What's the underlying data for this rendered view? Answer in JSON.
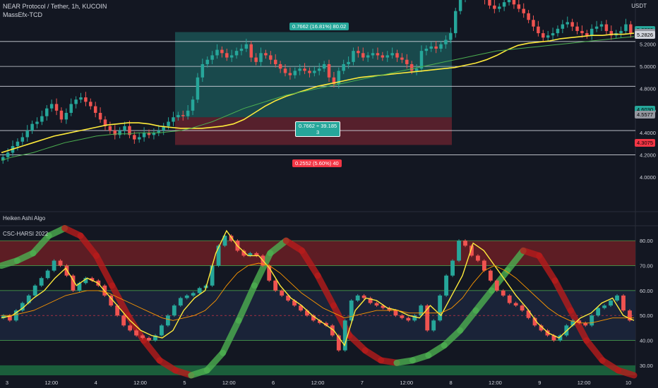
{
  "header": {
    "symbol_line": "NEAR Protocol / Tether, 1h, KUCOIN",
    "indicator_line": "MassEfx-TCD",
    "currency": "USDT"
  },
  "panes": {
    "heiken_label": "Heiken Ashi Algo",
    "harsi_label": "CSC-HARSI 2022"
  },
  "trade_box": {
    "target_label": "0.7662 (16.81%) 80.02",
    "mid_label_line1": "0.7662 ÷ 39.185",
    "mid_label_line2": "3",
    "stop_label": "0.2552 (5.60%) 40"
  },
  "price_badges": [
    {
      "text": "5.3239",
      "color": "#26a69a",
      "price": 5.3239
    },
    {
      "text": "5.3027",
      "color": "#9598a1",
      "price": 5.3027
    },
    {
      "text": "5.2826",
      "color": "#d1d4dc",
      "price": 5.2826
    },
    {
      "text": "4.6030",
      "color": "#26a69a",
      "price": 4.603
    },
    {
      "text": "4.5577",
      "color": "#9598a1",
      "price": 4.5577
    },
    {
      "text": "4.3075",
      "color": "#f23645",
      "price": 4.3075
    }
  ],
  "chart_data": [
    {
      "type": "candlestick",
      "title": "NEAR Protocol / Tether, 1h, KUCOIN",
      "ylim": [
        3.7,
        5.6
      ],
      "y_ticks": [
        "4.0000",
        "4.2000",
        "4.4000",
        "4.6000",
        "4.8000",
        "5.0000",
        "5.2000"
      ],
      "y_tick_values": [
        4.0,
        4.2,
        4.4,
        4.6,
        4.8,
        5.0,
        5.2
      ],
      "x_ticks": [
        "3",
        "12:00",
        "4",
        "12:00",
        "5",
        "12:00",
        "6",
        "12:00",
        "7",
        "12:00",
        "8",
        "12:00",
        "9",
        "12:00",
        "10"
      ],
      "horizontal_levels": [
        5.225,
        5.0,
        4.82,
        4.42,
        4.2
      ],
      "close_path": [
        4.18,
        4.22,
        4.28,
        4.32,
        4.36,
        4.42,
        4.48,
        4.5,
        4.55,
        4.62,
        4.66,
        4.6,
        4.52,
        4.58,
        4.66,
        4.7,
        4.72,
        4.68,
        4.64,
        4.58,
        4.52,
        4.46,
        4.42,
        4.38,
        4.42,
        4.46,
        4.38,
        4.34,
        4.36,
        4.4,
        4.38,
        4.4,
        4.42,
        4.46,
        4.5,
        4.54,
        4.56,
        4.55,
        4.6,
        4.7,
        4.9,
        5.02,
        5.06,
        5.1,
        5.15,
        5.12,
        5.08,
        5.1,
        5.14,
        5.16,
        5.2,
        5.08,
        5.04,
        5.12,
        5.1,
        5.06,
        5.02,
        4.98,
        4.94,
        4.92,
        4.96,
        4.98,
        4.96,
        4.94,
        4.96,
        4.98,
        5.02,
        4.9,
        4.84,
        4.96,
        5.02,
        5.04,
        5.14,
        5.12,
        5.08,
        5.1,
        5.12,
        5.1,
        5.08,
        5.1,
        5.12,
        5.08,
        5.06,
        5.02,
        4.96,
        4.98,
        5.14,
        5.16,
        5.18,
        5.16,
        5.2,
        5.24,
        5.3,
        5.5,
        5.62,
        5.7,
        5.75,
        5.72,
        5.66,
        5.6,
        5.55,
        5.52,
        5.54,
        5.58,
        5.6,
        5.56,
        5.52,
        5.48,
        5.42,
        5.36,
        5.3,
        5.26,
        5.28,
        5.3,
        5.34,
        5.38,
        5.4,
        5.36,
        5.32,
        5.3,
        5.28,
        5.34,
        5.36,
        5.38,
        5.32,
        5.28,
        5.3,
        5.32,
        5.38,
        5.3
      ],
      "series": [
        {
          "name": "",
          "type": "line",
          "color": "#ffeb3b",
          "values": [
            4.22,
            4.25,
            4.28,
            4.31,
            4.34,
            4.37,
            4.39,
            4.41,
            4.43,
            4.45,
            4.47,
            4.48,
            4.49,
            4.49,
            4.48,
            4.46,
            4.45,
            4.44,
            4.44,
            4.44,
            4.45,
            4.46,
            4.48,
            4.52,
            4.58,
            4.64,
            4.69,
            4.73,
            4.76,
            4.79,
            4.82,
            4.84,
            4.86,
            4.88,
            4.9,
            4.91,
            4.92,
            4.93,
            4.94,
            4.95,
            4.96,
            4.97,
            4.98,
            4.99,
            5.01,
            5.03,
            5.06,
            5.1,
            5.15,
            5.19,
            5.21,
            5.22,
            5.23,
            5.25,
            5.26,
            5.27,
            5.28,
            5.28,
            5.29,
            5.29,
            5.3
          ]
        },
        {
          "name": "",
          "type": "line",
          "color": "#4caf50",
          "values": [
            4.15,
            4.18,
            4.2,
            4.22,
            4.25,
            4.28,
            4.31,
            4.33,
            4.35,
            4.37,
            4.38,
            4.39,
            4.39,
            4.4,
            4.4,
            4.4,
            4.41,
            4.42,
            4.44,
            4.47,
            4.5,
            4.54,
            4.58,
            4.62,
            4.65,
            4.68,
            4.71,
            4.74,
            4.76,
            4.78,
            4.8,
            4.82,
            4.84,
            4.86,
            4.88,
            4.9,
            4.92,
            4.94,
            4.96,
            4.98,
            5.0,
            5.02,
            5.04,
            5.06,
            5.08,
            5.1,
            5.12,
            5.14,
            5.15,
            5.16,
            5.17,
            5.18,
            5.19,
            5.2,
            5.21,
            5.22,
            5.23,
            5.24,
            5.25,
            5.26,
            5.27
          ]
        }
      ]
    },
    {
      "type": "candlestick",
      "title": "CSC-HARSI 2022",
      "ylim": [
        26,
        86
      ],
      "y_ticks": [
        "30.00",
        "40.00",
        "50.00",
        "60.00",
        "70.00",
        "80.00"
      ],
      "y_tick_values": [
        30,
        40,
        50,
        60,
        70,
        80
      ],
      "bands": [
        {
          "from": 70,
          "to": 80,
          "color": "#5d1d24"
        },
        {
          "from": 40,
          "to": 60,
          "color": "#1a2338"
        },
        {
          "from": 26,
          "to": 30,
          "color": "#1b5e3b"
        }
      ],
      "levels": [
        40,
        50,
        60,
        70,
        80
      ],
      "close_path": [
        50,
        48,
        52,
        55,
        58,
        62,
        65,
        68,
        72,
        70,
        66,
        60,
        63,
        65,
        64,
        62,
        58,
        54,
        50,
        46,
        44,
        42,
        41,
        40,
        42,
        46,
        50,
        54,
        57,
        58,
        59,
        61,
        62,
        70,
        78,
        82,
        80,
        76,
        74,
        75,
        74,
        70,
        64,
        60,
        58,
        56,
        54,
        52,
        50,
        48,
        47,
        46,
        42,
        36,
        48,
        56,
        58,
        57,
        55,
        54,
        53,
        52,
        50,
        49,
        48,
        50,
        54,
        44,
        48,
        58,
        66,
        72,
        80,
        78,
        74,
        72,
        68,
        64,
        60,
        58,
        55,
        54,
        52,
        49,
        46,
        44,
        42,
        40,
        42,
        46,
        48,
        47,
        46,
        50,
        53,
        54,
        56,
        58,
        52,
        48
      ],
      "series": [
        {
          "name": "",
          "type": "line",
          "color": "#ffeb3b",
          "values": [
            49,
            50,
            53,
            57,
            60,
            65,
            69,
            62,
            65,
            63,
            58,
            53,
            48,
            44,
            42,
            41,
            44,
            52,
            57,
            60,
            75,
            84,
            78,
            74,
            74,
            69,
            62,
            57,
            54,
            50,
            47,
            44,
            38,
            52,
            57,
            56,
            53,
            52,
            50,
            49,
            54,
            50,
            58,
            66,
            79,
            76,
            70,
            64,
            58,
            53,
            47,
            43,
            41,
            45,
            49,
            51,
            55,
            57,
            50,
            48
          ]
        },
        {
          "name": "",
          "type": "line",
          "color": "#ff9800",
          "values": [
            50,
            50,
            51,
            52,
            54,
            56,
            58,
            59,
            60,
            60,
            59,
            57,
            55,
            53,
            51,
            49,
            48,
            49,
            50,
            52,
            56,
            62,
            67,
            70,
            71,
            70,
            67,
            63,
            59,
            56,
            53,
            51,
            49,
            50,
            51,
            52,
            52,
            52,
            51,
            51,
            51,
            51,
            53,
            57,
            63,
            68,
            70,
            68,
            65,
            61,
            57,
            53,
            50,
            48,
            47,
            47,
            48,
            49,
            49,
            49
          ]
        },
        {
          "name": "",
          "type": "band",
          "color": "#4caf50",
          "values": [
            70,
            72,
            75,
            82,
            85,
            82,
            74,
            62,
            50,
            40,
            32,
            28,
            26,
            28,
            35,
            48,
            62,
            75,
            80,
            76,
            66,
            54,
            42,
            36,
            32,
            31,
            32,
            34,
            38,
            44,
            52,
            60,
            68,
            76,
            74,
            64,
            52,
            40,
            32,
            28,
            26
          ]
        }
      ]
    }
  ]
}
